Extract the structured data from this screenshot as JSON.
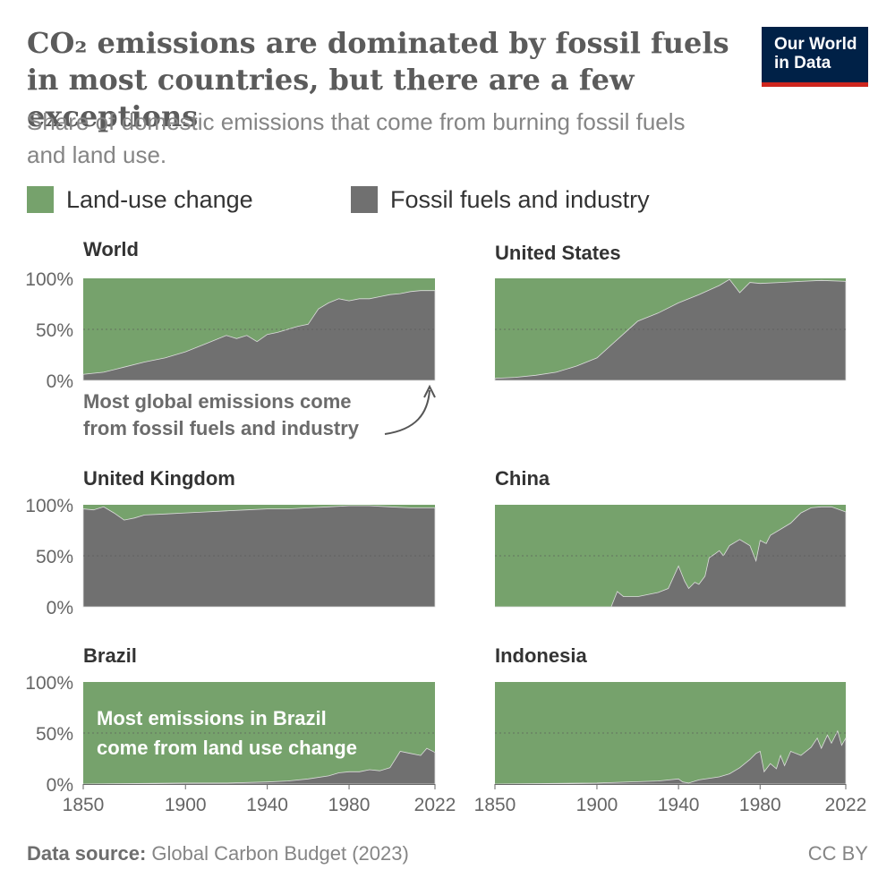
{
  "title": "CO₂ emissions are dominated by fossil fuels in most countries, but there are a few exceptions",
  "subtitle": "Share of domestic emissions that come from burning fossil fuels and land use.",
  "logo": {
    "line1": "Our World",
    "line2": "in Data"
  },
  "colors": {
    "land_use": "#76a26c",
    "fossil": "#707070",
    "zero_line": "#555555",
    "mid_line": "#555555"
  },
  "legend": [
    {
      "label": "Land-use change",
      "color": "#76a26c"
    },
    {
      "label": "Fossil fuels and industry",
      "color": "#707070"
    }
  ],
  "footer": {
    "source_label": "Data source:",
    "source_text": "Global Carbon Budget (2023)",
    "license": "CC BY"
  },
  "chart_data": [
    {
      "type": "area",
      "panel": "World",
      "title": "World",
      "x_range": [
        1850,
        2022
      ],
      "ylim": [
        0,
        100
      ],
      "y_ticks": [
        "0%",
        "50%",
        "100%"
      ],
      "x_ticks": [],
      "annotation": "Most global emissions come from fossil fuels and industry",
      "series": [
        {
          "name": "Fossil fuels and industry",
          "x": [
            1850,
            1860,
            1870,
            1880,
            1890,
            1900,
            1910,
            1920,
            1925,
            1930,
            1935,
            1940,
            1945,
            1950,
            1955,
            1960,
            1965,
            1970,
            1975,
            1980,
            1985,
            1990,
            1995,
            2000,
            2005,
            2010,
            2015,
            2022
          ],
          "y": [
            6,
            8,
            13,
            18,
            22,
            28,
            36,
            44,
            41,
            44,
            38,
            45,
            47,
            50,
            53,
            55,
            70,
            76,
            80,
            78,
            80,
            80,
            82,
            84,
            85,
            87,
            88,
            88
          ]
        }
      ]
    },
    {
      "type": "area",
      "panel": "United States",
      "title": "United States",
      "x_range": [
        1850,
        2022
      ],
      "ylim": [
        0,
        100
      ],
      "y_ticks": [],
      "x_ticks": [],
      "series": [
        {
          "name": "Fossil fuels and industry",
          "x": [
            1850,
            1860,
            1870,
            1880,
            1890,
            1900,
            1910,
            1920,
            1930,
            1940,
            1950,
            1960,
            1965,
            1970,
            1975,
            1980,
            1990,
            2000,
            2010,
            2022
          ],
          "y": [
            2,
            3,
            5,
            8,
            14,
            22,
            40,
            58,
            66,
            76,
            84,
            93,
            99,
            86,
            96,
            95,
            96,
            97,
            98,
            97
          ]
        }
      ]
    },
    {
      "type": "area",
      "panel": "United Kingdom",
      "title": "United Kingdom",
      "x_range": [
        1850,
        2022
      ],
      "ylim": [
        0,
        100
      ],
      "y_ticks": [
        "0%",
        "50%",
        "100%"
      ],
      "x_ticks": [],
      "series": [
        {
          "name": "Fossil fuels and industry",
          "x": [
            1850,
            1855,
            1860,
            1865,
            1870,
            1875,
            1880,
            1890,
            1900,
            1910,
            1920,
            1930,
            1940,
            1950,
            1960,
            1970,
            1980,
            1990,
            2000,
            2010,
            2022
          ],
          "y": [
            96,
            95,
            98,
            92,
            85,
            87,
            90,
            91,
            92,
            93,
            94,
            95,
            96,
            96,
            97,
            98,
            99,
            99,
            98,
            97,
            97
          ]
        }
      ]
    },
    {
      "type": "area",
      "panel": "China",
      "title": "China",
      "x_range": [
        1850,
        2022
      ],
      "ylim": [
        0,
        100
      ],
      "y_ticks": [],
      "x_ticks": [],
      "series": [
        {
          "name": "Fossil fuels and industry",
          "x": [
            1850,
            1900,
            1907,
            1910,
            1913,
            1920,
            1930,
            1935,
            1940,
            1943,
            1945,
            1948,
            1950,
            1953,
            1955,
            1958,
            1960,
            1962,
            1965,
            1970,
            1975,
            1978,
            1980,
            1983,
            1985,
            1990,
            1995,
            2000,
            2005,
            2010,
            2015,
            2022
          ],
          "y": [
            0,
            0,
            0,
            15,
            10,
            10,
            14,
            18,
            40,
            25,
            18,
            24,
            22,
            30,
            48,
            52,
            55,
            50,
            60,
            66,
            60,
            45,
            65,
            62,
            70,
            76,
            82,
            92,
            97,
            98,
            98,
            93
          ]
        }
      ]
    },
    {
      "type": "area",
      "panel": "Brazil",
      "title": "Brazil",
      "x_range": [
        1850,
        2022
      ],
      "ylim": [
        0,
        100
      ],
      "y_ticks": [
        "0%",
        "50%",
        "100%"
      ],
      "x_ticks": [
        "1850",
        "1900",
        "1940",
        "1980",
        "2022"
      ],
      "annotation": "Most emissions in Brazil come from land use change",
      "series": [
        {
          "name": "Fossil fuels and industry",
          "x": [
            1850,
            1900,
            1920,
            1940,
            1950,
            1960,
            1970,
            1975,
            1980,
            1985,
            1990,
            1995,
            2000,
            2005,
            2010,
            2015,
            2018,
            2022
          ],
          "y": [
            0,
            1,
            1,
            2,
            3,
            5,
            8,
            11,
            12,
            12,
            14,
            13,
            16,
            32,
            30,
            28,
            35,
            31
          ]
        }
      ]
    },
    {
      "type": "area",
      "panel": "Indonesia",
      "title": "Indonesia",
      "x_range": [
        1850,
        2022
      ],
      "ylim": [
        0,
        100
      ],
      "y_ticks": [],
      "x_ticks": [
        "1850",
        "1900",
        "1940",
        "1980",
        "2022"
      ],
      "series": [
        {
          "name": "Fossil fuels and industry",
          "x": [
            1850,
            1900,
            1930,
            1940,
            1942,
            1945,
            1950,
            1960,
            1965,
            1970,
            1975,
            1978,
            1980,
            1982,
            1985,
            1988,
            1990,
            1992,
            1995,
            2000,
            2005,
            2008,
            2010,
            2013,
            2015,
            2018,
            2020,
            2022
          ],
          "y": [
            0,
            1,
            3,
            5,
            2,
            1,
            4,
            7,
            10,
            16,
            24,
            30,
            32,
            12,
            20,
            15,
            28,
            18,
            32,
            28,
            36,
            45,
            35,
            48,
            40,
            52,
            38,
            45
          ]
        }
      ]
    }
  ]
}
